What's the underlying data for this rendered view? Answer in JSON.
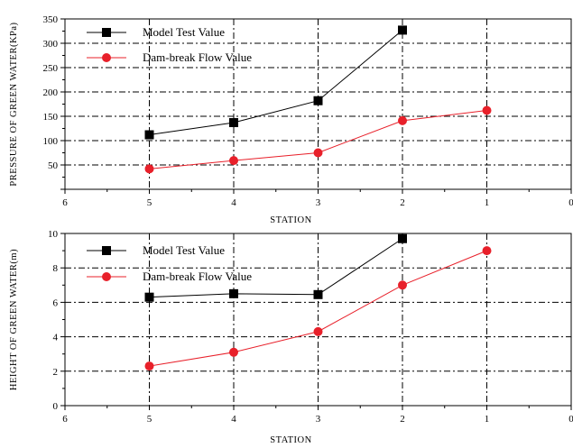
{
  "chart_data": [
    {
      "type": "line",
      "xlabel": "STATION",
      "ylabel": "PRESSURE OF GREEN WATER(KPa)",
      "xlim": [
        6,
        0
      ],
      "ylim": [
        0,
        350
      ],
      "x_ticks": [
        6,
        5,
        4,
        3,
        2,
        1,
        0
      ],
      "y_ticks": [
        50,
        100,
        150,
        200,
        250,
        300,
        350
      ],
      "grid": true,
      "legend_position": "top-left",
      "series": [
        {
          "name": "Model Test Value",
          "color": "#000000",
          "marker": "square",
          "x": [
            5,
            4,
            3,
            2
          ],
          "y": [
            112,
            137,
            182,
            327
          ]
        },
        {
          "name": "Dam-break Flow Value",
          "color": "#e8202a",
          "marker": "circle",
          "x": [
            5,
            4,
            3,
            2,
            1
          ],
          "y": [
            42,
            59,
            75,
            141,
            162
          ]
        }
      ]
    },
    {
      "type": "line",
      "xlabel": "STATION",
      "ylabel": "HEIGHT OF GREEN WATER(m)",
      "xlim": [
        6,
        0
      ],
      "ylim": [
        0,
        10
      ],
      "x_ticks": [
        6,
        5,
        4,
        3,
        2,
        1,
        0
      ],
      "y_ticks": [
        0,
        2,
        4,
        6,
        8,
        10
      ],
      "grid": true,
      "legend_position": "top-left",
      "series": [
        {
          "name": "Model Test Value",
          "color": "#000000",
          "marker": "square",
          "x": [
            5,
            4,
            3,
            2
          ],
          "y": [
            6.3,
            6.5,
            6.45,
            9.7
          ]
        },
        {
          "name": "Dam-break Flow Value",
          "color": "#e8202a",
          "marker": "circle",
          "x": [
            5,
            4,
            3,
            2,
            1
          ],
          "y": [
            2.3,
            3.1,
            4.3,
            7.0,
            9.0
          ]
        }
      ]
    }
  ]
}
